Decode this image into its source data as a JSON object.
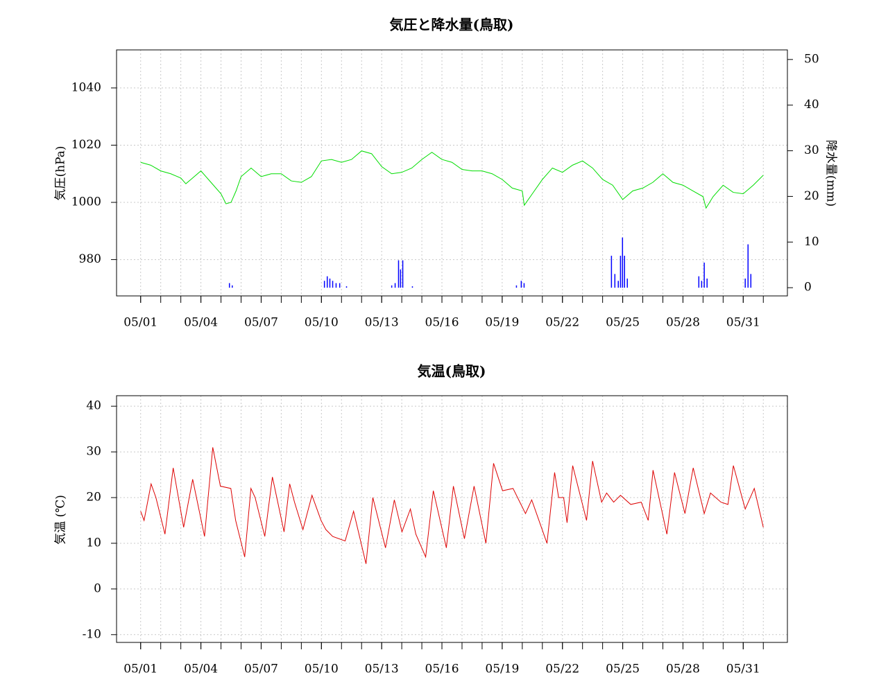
{
  "chart_data": [
    {
      "type": "line",
      "title": "気圧と降水量(鳥取)",
      "ylabel": "気圧(hPa)",
      "y2label": "降水量(mm)",
      "xlim": [
        -1.2,
        32.2
      ],
      "xticks": [
        {
          "value": 0,
          "label": "05/01"
        },
        {
          "value": 3,
          "label": "05/04"
        },
        {
          "value": 6,
          "label": "05/07"
        },
        {
          "value": 9,
          "label": "05/10"
        },
        {
          "value": 12,
          "label": "05/13"
        },
        {
          "value": 15,
          "label": "05/16"
        },
        {
          "value": 18,
          "label": "05/19"
        },
        {
          "value": 21,
          "label": "05/22"
        },
        {
          "value": 24,
          "label": "05/25"
        },
        {
          "value": 27,
          "label": "05/28"
        },
        {
          "value": 30,
          "label": "05/31"
        }
      ],
      "xminor": [
        0,
        1,
        2,
        3,
        4,
        5,
        6,
        7,
        8,
        9,
        10,
        11,
        12,
        13,
        14,
        15,
        16,
        17,
        18,
        19,
        20,
        21,
        22,
        23,
        24,
        25,
        26,
        27,
        28,
        29,
        30,
        31
      ],
      "ylim": [
        967.3,
        1053.3
      ],
      "yticks": [
        980,
        1000,
        1020,
        1040
      ],
      "y2lim": [
        -1.8,
        52.1
      ],
      "y2ticks": [
        0,
        10,
        20,
        30,
        40,
        50
      ],
      "grid": true,
      "series": [
        {
          "type": "line",
          "color": "#00dd00",
          "x": [
            0,
            0.5,
            1,
            1.5,
            2,
            2.25,
            2.5,
            3,
            3.5,
            4,
            4.25,
            4.5,
            4.75,
            5,
            5.5,
            6,
            6.5,
            7,
            7.5,
            8,
            8.5,
            9,
            9.5,
            10,
            10.5,
            11,
            11.5,
            12,
            12.5,
            13,
            13.5,
            14,
            14.5,
            15,
            15.5,
            16,
            16.5,
            17,
            17.5,
            18,
            18.5,
            19,
            19.1,
            19.5,
            20,
            20.5,
            21,
            21.5,
            22,
            22.5,
            23,
            23.5,
            24,
            24.5,
            25,
            25.5,
            26,
            26.5,
            27,
            27.5,
            28,
            28.15,
            28.5,
            29,
            29.5,
            30,
            30.5,
            31
          ],
          "values": [
            1014,
            1013,
            1011,
            1010,
            1008.5,
            1006.5,
            1008,
            1011,
            1007,
            1003,
            999.5,
            1000,
            1004,
            1009,
            1012,
            1009,
            1010,
            1010,
            1007.5,
            1007,
            1009,
            1014.5,
            1015,
            1014,
            1015,
            1018,
            1017,
            1012.5,
            1010,
            1010.5,
            1012,
            1015,
            1017.5,
            1015,
            1014,
            1011.5,
            1011,
            1011,
            1010,
            1008,
            1005,
            1004,
            999,
            1003,
            1008,
            1012,
            1010.5,
            1013,
            1014.5,
            1012,
            1008,
            1006,
            1001,
            1004,
            1005,
            1007,
            1010,
            1007,
            1006,
            1004,
            1002,
            998,
            1002,
            1006,
            1003.5,
            1003,
            1006,
            1009.5
          ]
        },
        {
          "type": "bar",
          "axis": "y2",
          "color": "#0000ff",
          "x": [
            4.42,
            4.56,
            9.15,
            9.29,
            9.42,
            9.56,
            9.73,
            9.91,
            10.25,
            12.5,
            12.67,
            12.84,
            12.94,
            13.05,
            13.53,
            18.71,
            18.95,
            19.09,
            23.44,
            23.61,
            23.78,
            23.89,
            23.99,
            24.09,
            24.23,
            27.79,
            27.93,
            28.06,
            28.2,
            30.1,
            30.24,
            30.38
          ],
          "values": [
            1,
            0.5,
            1.5,
            2.5,
            2,
            1.5,
            1,
            1,
            0.3,
            0.5,
            1,
            6,
            4,
            6,
            0.3,
            0.5,
            1.5,
            1,
            7,
            3,
            1.5,
            7,
            11,
            7,
            2,
            2.5,
            1.5,
            5.5,
            2,
            2,
            9.5,
            3
          ]
        }
      ]
    },
    {
      "type": "line",
      "title": "気温(鳥取)",
      "ylabel": "気温 (℃)",
      "xlim": [
        -1.2,
        32.2
      ],
      "xticks": [
        {
          "value": 0,
          "label": "05/01"
        },
        {
          "value": 3,
          "label": "05/04"
        },
        {
          "value": 6,
          "label": "05/07"
        },
        {
          "value": 9,
          "label": "05/10"
        },
        {
          "value": 12,
          "label": "05/13"
        },
        {
          "value": 15,
          "label": "05/16"
        },
        {
          "value": 18,
          "label": "05/19"
        },
        {
          "value": 21,
          "label": "05/22"
        },
        {
          "value": 24,
          "label": "05/25"
        },
        {
          "value": 27,
          "label": "05/28"
        },
        {
          "value": 30,
          "label": "05/31"
        }
      ],
      "xminor": [
        0,
        1,
        2,
        3,
        4,
        5,
        6,
        7,
        8,
        9,
        10,
        11,
        12,
        13,
        14,
        15,
        16,
        17,
        18,
        19,
        20,
        21,
        22,
        23,
        24,
        25,
        26,
        27,
        28,
        29,
        30,
        31
      ],
      "ylim": [
        -11.7,
        42.3
      ],
      "yticks": [
        -10,
        0,
        10,
        20,
        30,
        40
      ],
      "grid": true,
      "series": [
        {
          "type": "line",
          "color": "#dd0000",
          "x": [
            0,
            0.17,
            0.52,
            0.76,
            1.21,
            1.62,
            2.14,
            2.59,
            3.18,
            3.59,
            3.97,
            4.49,
            4.73,
            5.18,
            5.49,
            5.7,
            6.18,
            6.56,
            7.14,
            7.42,
            7.66,
            8.08,
            8.53,
            8.98,
            9.22,
            9.56,
            10.18,
            10.6,
            11.22,
            11.56,
            12.19,
            12.63,
            13.01,
            13.43,
            13.7,
            14.19,
            14.57,
            15.22,
            15.57,
            16.12,
            16.6,
            17.19,
            17.57,
            18.02,
            18.54,
            19.16,
            19.47,
            20.23,
            20.61,
            20.81,
            21.06,
            21.23,
            21.51,
            22.2,
            22.5,
            22.95,
            23.2,
            23.55,
            23.89,
            24.4,
            24.92,
            25.27,
            25.51,
            26.2,
            26.58,
            27.1,
            27.51,
            28.06,
            28.37,
            28.89,
            29.24,
            29.51,
            30.1,
            30.55,
            31
          ],
          "values": [
            17,
            15,
            23,
            20,
            12,
            26.5,
            13.5,
            24,
            11.5,
            31,
            22.5,
            22,
            15,
            7,
            22,
            20,
            11.5,
            24.5,
            12.5,
            23,
            19,
            13,
            20.5,
            15,
            13,
            11.5,
            10.5,
            17,
            5.5,
            20,
            9,
            19.5,
            12.5,
            17.5,
            12,
            7,
            21.5,
            9,
            22.5,
            11,
            22.5,
            10,
            27.5,
            21.5,
            22,
            16.5,
            19.5,
            10,
            25.5,
            20,
            20,
            14.5,
            27,
            15,
            28,
            19,
            21,
            19,
            20.5,
            18.5,
            19,
            15,
            26,
            12,
            25.5,
            16.5,
            26.5,
            16.5,
            21,
            19,
            18.5,
            27,
            17.5,
            22,
            13.5
          ]
        }
      ]
    }
  ]
}
